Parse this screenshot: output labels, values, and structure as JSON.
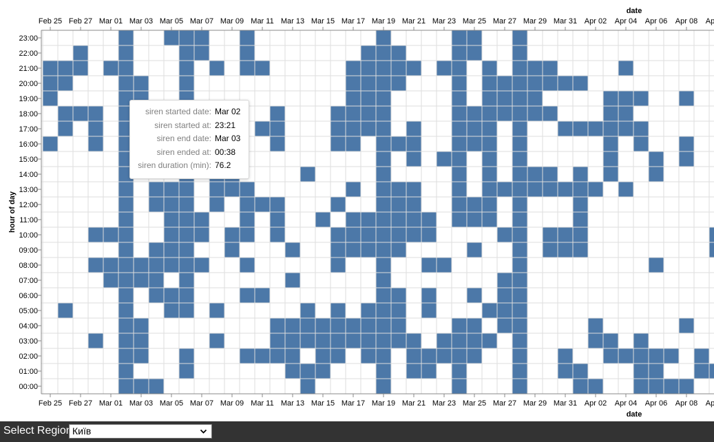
{
  "chart_data": {
    "type": "heatmap",
    "xlabel": "date",
    "ylabel": "hour of day",
    "x_tick_labels": [
      "Feb 25",
      "Feb 27",
      "Mar 01",
      "Mar 03",
      "Mar 05",
      "Mar 07",
      "Mar 09",
      "Mar 11",
      "Mar 13",
      "Mar 15",
      "Mar 17",
      "Mar 19",
      "Mar 21",
      "Mar 23",
      "Mar 25",
      "Mar 27",
      "Mar 29",
      "Mar 31",
      "Apr 02",
      "Apr 04",
      "Apr 06",
      "Apr 08",
      "Apr 10"
    ],
    "y_tick_labels": [
      "23:00",
      "22:00",
      "21:00",
      "20:00",
      "19:00",
      "18:00",
      "17:00",
      "16:00",
      "15:00",
      "14:00",
      "13:00",
      "12:00",
      "11:00",
      "10:00",
      "09:00",
      "08:00",
      "07:00",
      "06:00",
      "05:00",
      "04:00",
      "03:00",
      "02:00",
      "01:00",
      "00:00"
    ],
    "x_range": [
      "Feb 25",
      "Apr 10"
    ],
    "y_range": [
      0,
      23
    ],
    "grid": true,
    "cell_color": "#4c78a8",
    "grid_color": "#dddddd",
    "cells": [
      {
        "date": "Feb 25",
        "hours": [
          16,
          19,
          20,
          21
        ]
      },
      {
        "date": "Feb 26",
        "hours": [
          5,
          17,
          18,
          20,
          21
        ]
      },
      {
        "date": "Feb 27",
        "hours": [
          18,
          21,
          22
        ]
      },
      {
        "date": "Feb 28",
        "hours": [
          3,
          8,
          10,
          16,
          17,
          18
        ]
      },
      {
        "date": "Mar 01",
        "hours": [
          7,
          8,
          10,
          21
        ]
      },
      {
        "date": "Mar 02",
        "hours": [
          0,
          1,
          2,
          3,
          4,
          5,
          6,
          7,
          8,
          9,
          10,
          11,
          12,
          13,
          14,
          15,
          16,
          17,
          18,
          19,
          20,
          21,
          22,
          23
        ]
      },
      {
        "date": "Mar 03",
        "hours": [
          0,
          2,
          3,
          4,
          7,
          8,
          19,
          20
        ]
      },
      {
        "date": "Mar 04",
        "hours": [
          0,
          6,
          7,
          8,
          9,
          12,
          13
        ]
      },
      {
        "date": "Mar 05",
        "hours": [
          5,
          6,
          8,
          9,
          10,
          11,
          12,
          13,
          18,
          23
        ]
      },
      {
        "date": "Mar 06",
        "hours": [
          1,
          2,
          5,
          6,
          7,
          8,
          9,
          10,
          11,
          12,
          13,
          14,
          15,
          16,
          17,
          18,
          19,
          20,
          21,
          22,
          23
        ]
      },
      {
        "date": "Mar 07",
        "hours": [
          8,
          10,
          11,
          22,
          23
        ]
      },
      {
        "date": "Mar 08",
        "hours": [
          3,
          5,
          12,
          13,
          14,
          21
        ]
      },
      {
        "date": "Mar 09",
        "hours": [
          9,
          10,
          13,
          14
        ]
      },
      {
        "date": "Mar 10",
        "hours": [
          2,
          6,
          8,
          10,
          11,
          12,
          13,
          21,
          22,
          23
        ]
      },
      {
        "date": "Mar 11",
        "hours": [
          2,
          6,
          12,
          17,
          21
        ]
      },
      {
        "date": "Mar 12",
        "hours": [
          2,
          3,
          4,
          10,
          11,
          12,
          16,
          17,
          18
        ]
      },
      {
        "date": "Mar 13",
        "hours": [
          1,
          2,
          3,
          4,
          7,
          9
        ]
      },
      {
        "date": "Mar 14",
        "hours": [
          0,
          1,
          3,
          4,
          5,
          14
        ]
      },
      {
        "date": "Mar 15",
        "hours": [
          1,
          2,
          3,
          4,
          11
        ]
      },
      {
        "date": "Mar 16",
        "hours": [
          2,
          3,
          4,
          5,
          8,
          9,
          10,
          12,
          16,
          17,
          18
        ]
      },
      {
        "date": "Mar 17",
        "hours": [
          3,
          4,
          9,
          10,
          11,
          13,
          16,
          17,
          18,
          19,
          20,
          21
        ]
      },
      {
        "date": "Mar 18",
        "hours": [
          2,
          3,
          4,
          5,
          9,
          10,
          11,
          17,
          18,
          19,
          20,
          21,
          22
        ]
      },
      {
        "date": "Mar 19",
        "hours": [
          0,
          1,
          2,
          3,
          4,
          5,
          6,
          7,
          8,
          9,
          10,
          11,
          12,
          13,
          14,
          15,
          16,
          17,
          18,
          19,
          20,
          21,
          22,
          23
        ]
      },
      {
        "date": "Mar 20",
        "hours": [
          3,
          4,
          5,
          6,
          9,
          10,
          11,
          12,
          13,
          16,
          20,
          21,
          22
        ]
      },
      {
        "date": "Mar 21",
        "hours": [
          1,
          2,
          3,
          10,
          11,
          12,
          13,
          15,
          16,
          17,
          21
        ]
      },
      {
        "date": "Mar 22",
        "hours": [
          1,
          2,
          5,
          6,
          8,
          10,
          11
        ]
      },
      {
        "date": "Mar 23",
        "hours": [
          2,
          3,
          8,
          15,
          21
        ]
      },
      {
        "date": "Mar 24",
        "hours": [
          0,
          1,
          2,
          3,
          4,
          11,
          12,
          13,
          14,
          15,
          16,
          17,
          18,
          19,
          20,
          21,
          22,
          23
        ]
      },
      {
        "date": "Mar 25",
        "hours": [
          2,
          3,
          4,
          6,
          9,
          11,
          12,
          16,
          17,
          18,
          22,
          23
        ]
      },
      {
        "date": "Mar 26",
        "hours": [
          3,
          5,
          11,
          12,
          13,
          14,
          15,
          16,
          17,
          18,
          19,
          20,
          21
        ]
      },
      {
        "date": "Mar 27",
        "hours": [
          4,
          5,
          6,
          7,
          10,
          13,
          18,
          19,
          20
        ]
      },
      {
        "date": "Mar 28",
        "hours": [
          0,
          1,
          2,
          3,
          4,
          5,
          6,
          7,
          8,
          9,
          10,
          11,
          12,
          13,
          14,
          15,
          16,
          17,
          18,
          19,
          20,
          21,
          22,
          23
        ]
      },
      {
        "date": "Mar 29",
        "hours": [
          13,
          14,
          18,
          19,
          20,
          21
        ]
      },
      {
        "date": "Mar 30",
        "hours": [
          9,
          10,
          13,
          14,
          18,
          20,
          21
        ]
      },
      {
        "date": "Mar 31",
        "hours": [
          1,
          2,
          9,
          10,
          13,
          17,
          20
        ]
      },
      {
        "date": "Apr 01",
        "hours": [
          0,
          1,
          9,
          10,
          11,
          12,
          13,
          14,
          17,
          20
        ]
      },
      {
        "date": "Apr 02",
        "hours": [
          0,
          3,
          4,
          13,
          17
        ]
      },
      {
        "date": "Apr 03",
        "hours": [
          2,
          3,
          14,
          15,
          16,
          17,
          18,
          19
        ]
      },
      {
        "date": "Apr 04",
        "hours": [
          2,
          13,
          17,
          18,
          19,
          21
        ]
      },
      {
        "date": "Apr 05",
        "hours": [
          0,
          1,
          2,
          3,
          16,
          17,
          19
        ]
      },
      {
        "date": "Apr 06",
        "hours": [
          0,
          1,
          2,
          8,
          14,
          15
        ]
      },
      {
        "date": "Apr 07",
        "hours": [
          0,
          2
        ]
      },
      {
        "date": "Apr 08",
        "hours": [
          0,
          4,
          15,
          16,
          19
        ]
      },
      {
        "date": "Apr 09",
        "hours": [
          1,
          2
        ]
      },
      {
        "date": "Apr 10",
        "hours": [
          1,
          9,
          10
        ]
      }
    ]
  },
  "tooltip": [
    {
      "key": "siren started date:",
      "value": "Mar 02"
    },
    {
      "key": "siren started at:",
      "value": "23:21"
    },
    {
      "key": "siren end date:",
      "value": "Mar 03"
    },
    {
      "key": "siren ended at:",
      "value": "00:38"
    },
    {
      "key": "siren duration (min):",
      "value": "76.2"
    }
  ],
  "region_selector": {
    "label": "Select Region",
    "selected": "Київ"
  },
  "icons": {
    "dropdown": "chevron-down-icon"
  }
}
